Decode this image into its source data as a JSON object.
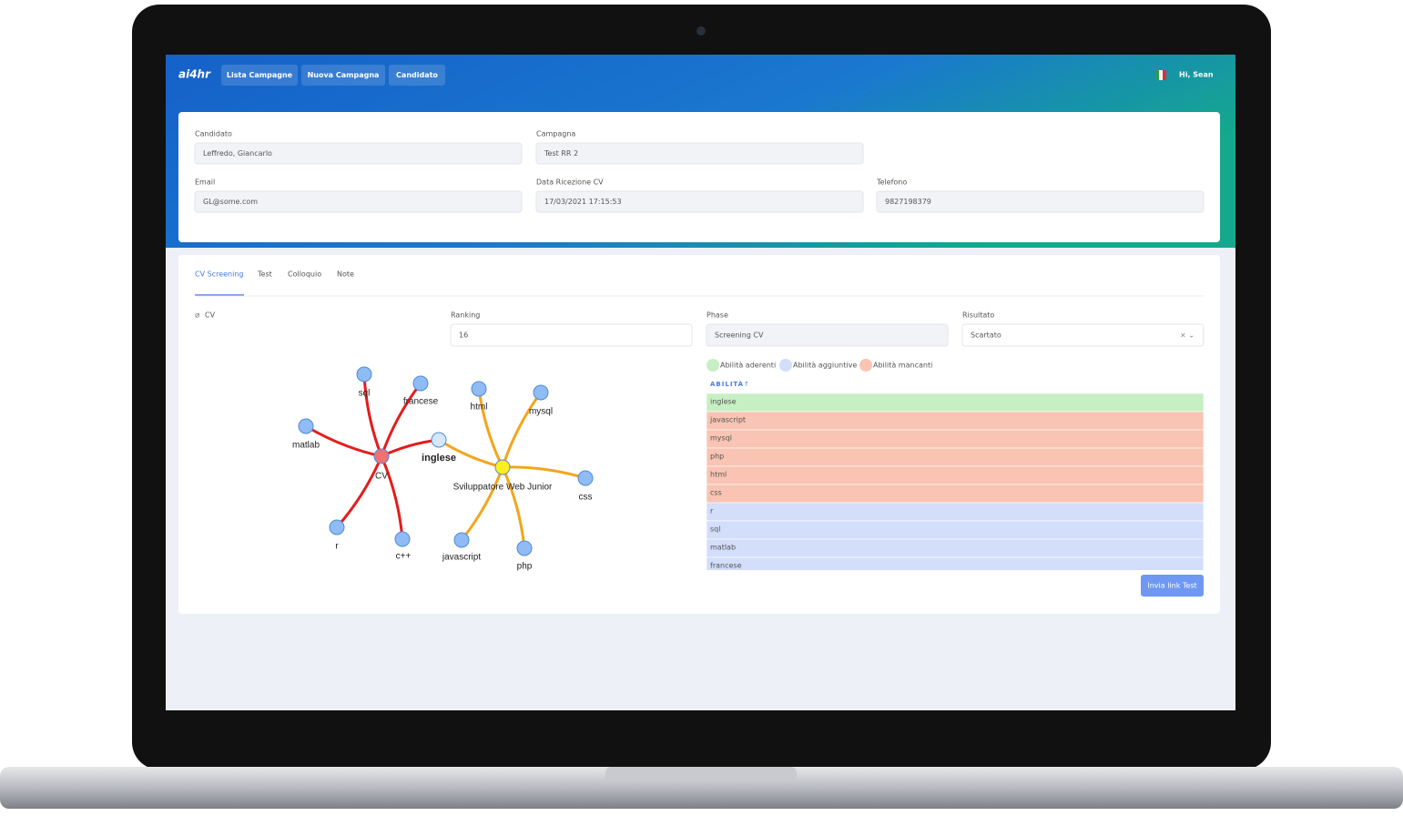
{
  "nav": {
    "logo": "ai4hr",
    "items": [
      "Lista Campagne",
      "Nuova Campagna",
      "Candidato"
    ],
    "greeting": "Hi, Sean"
  },
  "candidate": {
    "fields": [
      {
        "label": "Candidato",
        "value": "Leffredo, Giancarlo"
      },
      {
        "label": "Campagna",
        "value": "Test RR 2"
      },
      {
        "label": "Email",
        "value": "GL@some.com"
      },
      {
        "label": "Data Ricezione CV",
        "value": "17/03/2021 17:15:53"
      },
      {
        "label": "Telefono",
        "value": "9827198379"
      }
    ]
  },
  "tabs": [
    "CV Screening",
    "Test",
    "Colloquio",
    "Note"
  ],
  "screening": {
    "cv_link": "CV",
    "fields": [
      {
        "label": "Ranking",
        "value": "16"
      },
      {
        "label": "Phase",
        "value": "Screening CV"
      },
      {
        "label": "Risultato",
        "value": "Scartato"
      }
    ],
    "legend": [
      {
        "label": "Abilità aderenti",
        "color": "#c6efc4"
      },
      {
        "label": "Abilità aggiuntive",
        "color": "#d3defa"
      },
      {
        "label": "Abilità mancanti",
        "color": "#f9c4b3"
      }
    ],
    "skills_header": "ABILITÀ",
    "skills": [
      {
        "name": "inglese",
        "color": "#c6efc4"
      },
      {
        "name": "javascript",
        "color": "#f9c4b3"
      },
      {
        "name": "mysql",
        "color": "#f9c4b3"
      },
      {
        "name": "php",
        "color": "#f9c4b3"
      },
      {
        "name": "html",
        "color": "#f9c4b3"
      },
      {
        "name": "css",
        "color": "#f9c4b3"
      },
      {
        "name": "r",
        "color": "#d3defa"
      },
      {
        "name": "sql",
        "color": "#d3defa"
      },
      {
        "name": "matlab",
        "color": "#d3defa"
      },
      {
        "name": "francese",
        "color": "#d3defa"
      }
    ],
    "button": "Invia link Test"
  },
  "graph": {
    "nodes": [
      "CV",
      "Sviluppatore Web Junior",
      "inglese",
      "sql",
      "francese",
      "matlab",
      "r",
      "c++",
      "html",
      "mysql",
      "css",
      "javascript",
      "php"
    ]
  }
}
